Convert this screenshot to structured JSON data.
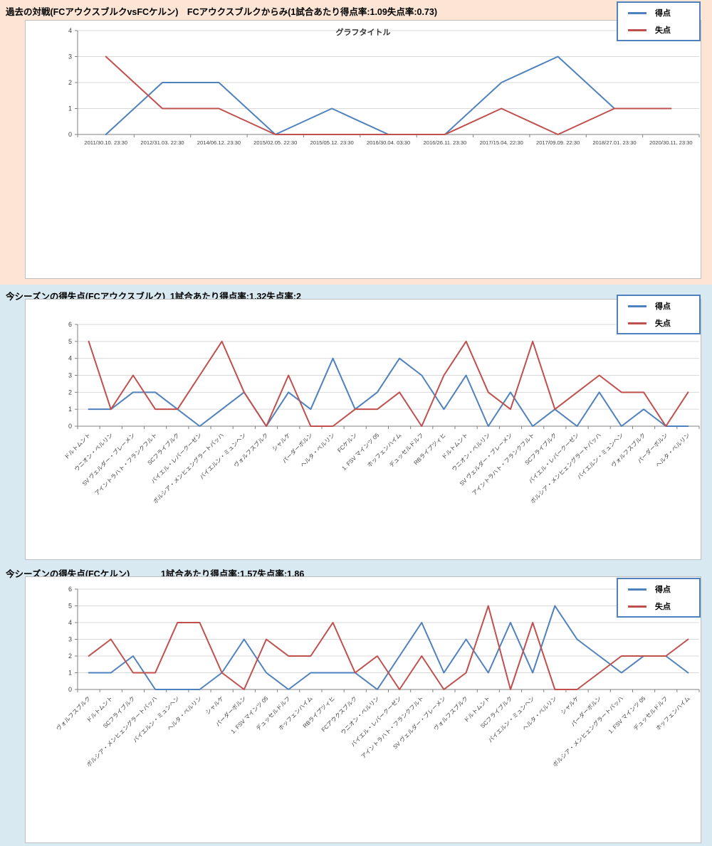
{
  "page": {
    "colors": {
      "top_section_bg": "#fce5d5",
      "season_section_bg": "#d9e9f2",
      "scored_line": "#4f81bd",
      "conceded_line": "#c0504d",
      "legend_border": "#4f81bd",
      "gridline": "#d9d9d9",
      "axis": "#808080"
    }
  },
  "chart_data": [
    {
      "type": "line",
      "section_title": "過去の対戦(FCアウクスブルクvsFCケルン)　FCアウクスブルクからみ(1試合あたり得点率:1.09失点率:0.73)",
      "title": "グラフタイトル",
      "xlabel": "",
      "ylabel": "",
      "ylim": [
        0,
        4
      ],
      "grid": true,
      "legend_position": "top-right",
      "categories": [
        "2011/30.10. 23:30",
        "2012/31.03. 22:30",
        "2014/06.12. 23:30",
        "2015/02.05. 22:30",
        "2015/05.12. 23:30",
        "2016/30.04. 03:30",
        "2016/26.11. 23:30",
        "2017/15.04. 22:30",
        "2017/09.09. 22:30",
        "2018/27.01. 23:30",
        "2020/30.11. 23:30"
      ],
      "series": [
        {
          "name": "得点",
          "color": "#4f81bd",
          "values": [
            0,
            2,
            2,
            0,
            1,
            0,
            0,
            2,
            3,
            1,
            1
          ]
        },
        {
          "name": "失点",
          "color": "#c0504d",
          "values": [
            3,
            1,
            1,
            0,
            0,
            0,
            0,
            1,
            0,
            1,
            1
          ]
        }
      ]
    },
    {
      "type": "line",
      "section_title": "今シーズンの得失点(FCアウクスブルク)  1試合あたり得点率:1.32失点率:2",
      "title": "",
      "xlabel": "",
      "ylabel": "",
      "ylim": [
        0,
        6
      ],
      "grid": true,
      "legend_position": "top-right",
      "categories": [
        "ドルトムント",
        "ウニオン・ベルリン",
        "SV ヴェルダー・ブレーメン",
        "アイントラハト・フランクフルト",
        "SCフライブルク",
        "バイエル・レバークーゼン",
        "ボルシア・メンヒェングラートバッハ",
        "バイエルン・ミュンヘン",
        "ヴォルフスブルク",
        "シャルケ",
        "パーダーボルン",
        "ヘルタ・ベルリン",
        "FCケルン",
        "1. FSV マインツ 05",
        "ホッフェンハイム",
        "デュッセルドルフ",
        "RBライプツィヒ",
        "ドルトムント",
        "ウニオン・ベルリン",
        "SV ヴェルダー・ブレーメン",
        "アイントラハト・フランクフルト",
        "SCフライブルク",
        "バイエル・レバークーゼン",
        "ボルシア・メンヒェングラートバッハ",
        "バイエルン・ミュンヘン",
        "ヴォルフスブルク",
        "パーダーボルン",
        "ヘルタ・ベルリン"
      ],
      "series": [
        {
          "name": "得点",
          "color": "#4f81bd",
          "values": [
            1,
            1,
            2,
            2,
            1,
            0,
            1,
            2,
            0,
            2,
            1,
            4,
            1,
            2,
            4,
            3,
            1,
            3,
            0,
            2,
            0,
            1,
            0,
            2,
            0,
            1,
            0,
            0
          ]
        },
        {
          "name": "失点",
          "color": "#c0504d",
          "values": [
            5,
            1,
            3,
            1,
            1,
            3,
            5,
            2,
            0,
            3,
            0,
            0,
            1,
            1,
            2,
            0,
            3,
            5,
            2,
            1,
            5,
            1,
            2,
            3,
            2,
            2,
            0,
            2
          ]
        }
      ]
    },
    {
      "type": "line",
      "section_title": "今シーズンの得失点(FCケルン)　         1試合あたり得点率:1.57失点率:1.86",
      "title": "",
      "xlabel": "",
      "ylabel": "",
      "ylim": [
        0,
        6
      ],
      "grid": true,
      "legend_position": "top-right",
      "categories": [
        "ヴォルフスブルク",
        "ドルトムント",
        "SCフライブルク",
        "ボルシア・メンヒェングラートバッハ",
        "バイエルン・ミュンヘン",
        "ヘルタ・ベルリン",
        "シャルケ",
        "パーダーボルン",
        "1. FSV マインツ 05",
        "デュッセルドルフ",
        "ホッフェンハイム",
        "RBライプツィヒ",
        "FCアウクスブルク",
        "ウニオン・ベルリン",
        "バイエル・レバークーゼン",
        "アイントラハト・フランクフルト",
        "SV ヴェルダー・ブレーメン",
        "ヴォルフスブルク",
        "ドルトムント",
        "SCフライブルク",
        "バイエルン・ミュンヘン",
        "ヘルタ・ベルリン",
        "シャルケ",
        "パーダーボルン",
        "ボルシア・メンヒェングラートバッハ",
        "1. FSV マインツ 05",
        "デュッセルドルフ",
        "ホッフェンハイム"
      ],
      "series": [
        {
          "name": "得点",
          "color": "#4f81bd",
          "values": [
            1,
            1,
            2,
            0,
            0,
            0,
            1,
            3,
            1,
            0,
            1,
            1,
            1,
            0,
            2,
            4,
            1,
            3,
            1,
            4,
            1,
            5,
            3,
            2,
            1,
            2,
            2,
            1
          ]
        },
        {
          "name": "失点",
          "color": "#c0504d",
          "values": [
            2,
            3,
            1,
            1,
            4,
            4,
            1,
            0,
            3,
            2,
            2,
            4,
            1,
            2,
            0,
            2,
            0,
            1,
            5,
            0,
            4,
            0,
            0,
            1,
            2,
            2,
            2,
            3
          ]
        }
      ]
    }
  ]
}
